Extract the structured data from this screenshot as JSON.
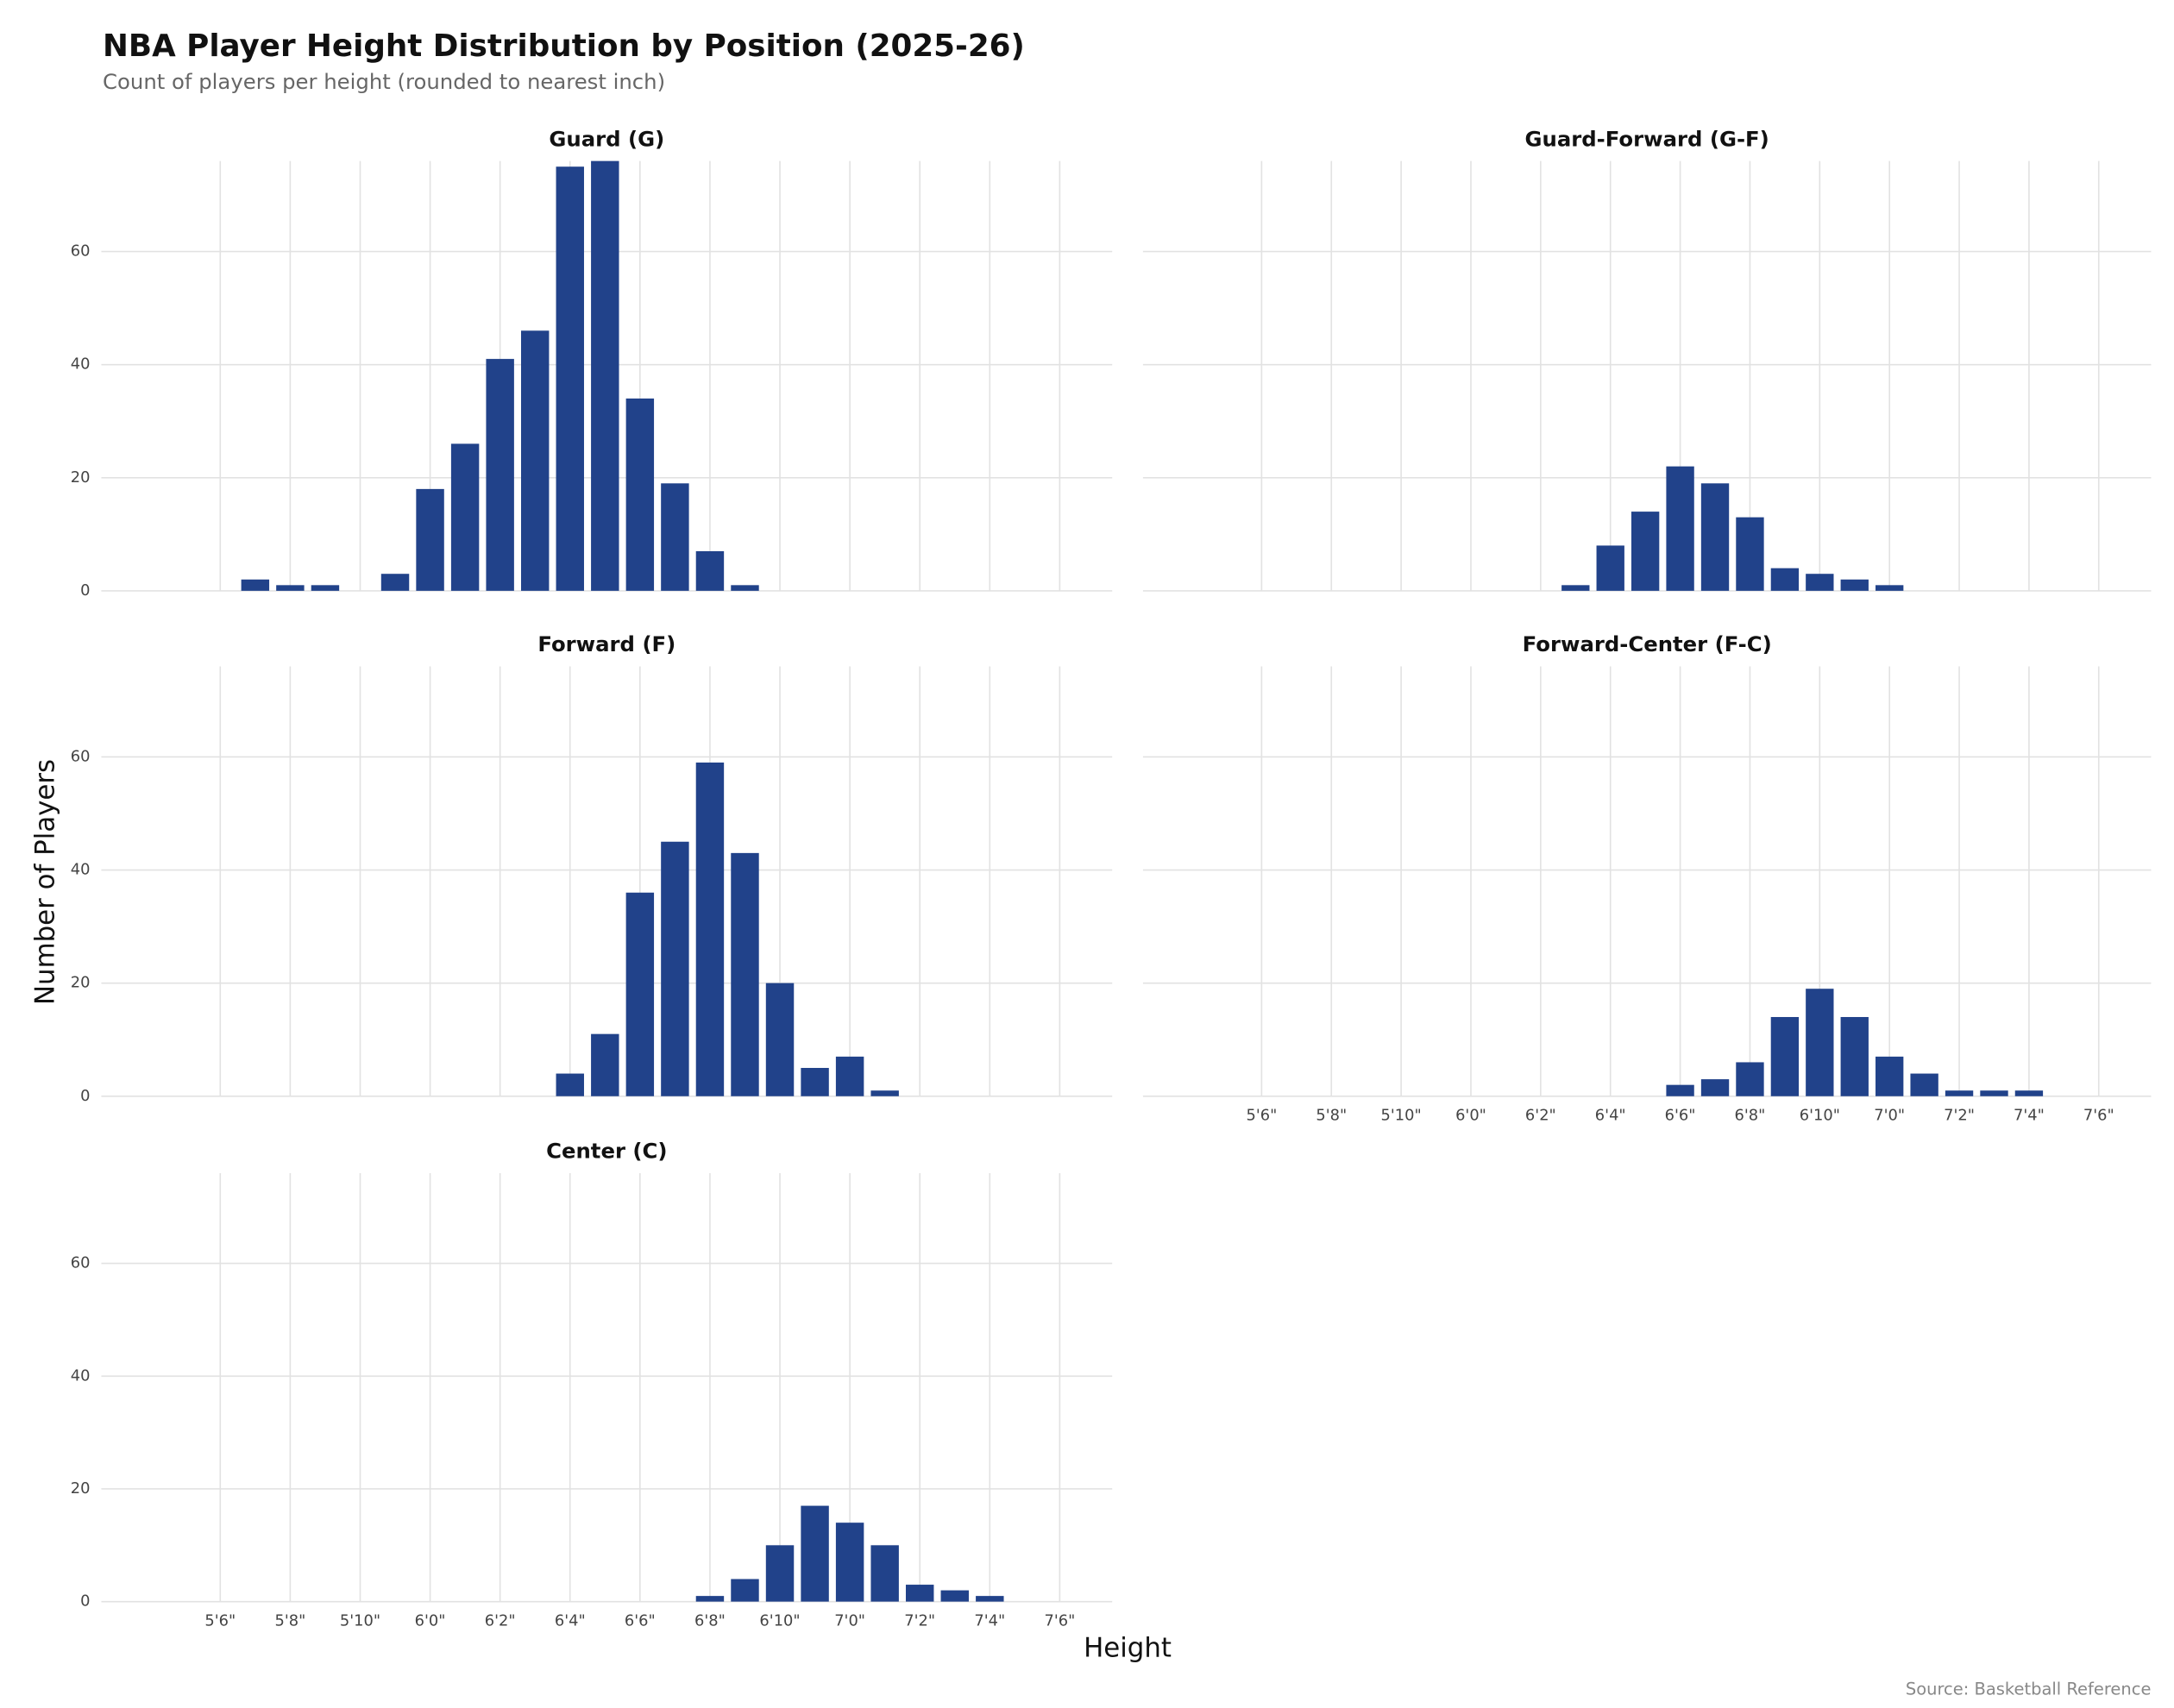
{
  "chart_data": {
    "type": "bar",
    "title": "NBA Player Height Distribution by Position (2025-26)",
    "subtitle": "Count of players per height (rounded to nearest inch)",
    "xlabel": "Height",
    "ylabel": "Number of Players",
    "caption": "Source: Basketball Reference",
    "color": "#21428a",
    "grid": true,
    "xlim": [
      62.6,
      91.5
    ],
    "ylim": [
      0,
      76
    ],
    "xticks": [
      {
        "value": 66,
        "label": "5'6\""
      },
      {
        "value": 68,
        "label": "5'8\""
      },
      {
        "value": 70,
        "label": "5'10\""
      },
      {
        "value": 72,
        "label": "6'0\""
      },
      {
        "value": 74,
        "label": "6'2\""
      },
      {
        "value": 76,
        "label": "6'4\""
      },
      {
        "value": 78,
        "label": "6'6\""
      },
      {
        "value": 80,
        "label": "6'8\""
      },
      {
        "value": 82,
        "label": "6'10\""
      },
      {
        "value": 84,
        "label": "7'0\""
      },
      {
        "value": 86,
        "label": "7'2\""
      },
      {
        "value": 88,
        "label": "7'4\""
      },
      {
        "value": 90,
        "label": "7'6\""
      }
    ],
    "yticks": [
      0,
      20,
      40,
      60
    ],
    "panels": [
      {
        "title": "Guard (G)",
        "x": [
          67,
          68,
          69,
          71,
          72,
          73,
          74,
          75,
          76,
          77,
          78,
          79,
          80,
          81
        ],
        "values": [
          2,
          1,
          1,
          3,
          18,
          26,
          41,
          46,
          75,
          76,
          34,
          19,
          7,
          1
        ]
      },
      {
        "title": "Guard-Forward (G-F)",
        "x": [
          75,
          76,
          77,
          78,
          79,
          80,
          81,
          82,
          83,
          84
        ],
        "values": [
          1,
          8,
          14,
          22,
          19,
          13,
          4,
          3,
          2,
          1
        ]
      },
      {
        "title": "Forward (F)",
        "x": [
          76,
          77,
          78,
          79,
          80,
          81,
          82,
          83,
          84,
          85
        ],
        "values": [
          4,
          11,
          36,
          45,
          59,
          43,
          20,
          5,
          7,
          1
        ]
      },
      {
        "title": "Forward-Center (F-C)",
        "x": [
          78,
          79,
          80,
          81,
          82,
          83,
          84,
          85,
          86,
          87,
          88
        ],
        "values": [
          2,
          3,
          6,
          14,
          19,
          14,
          7,
          4,
          1,
          1,
          1
        ]
      },
      {
        "title": "Center (C)",
        "x": [
          80,
          81,
          82,
          83,
          84,
          85,
          86,
          87,
          88
        ],
        "values": [
          1,
          4,
          10,
          17,
          14,
          10,
          3,
          2,
          1
        ]
      }
    ]
  }
}
